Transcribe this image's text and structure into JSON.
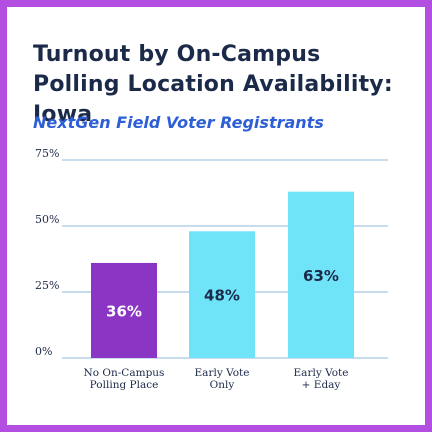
{
  "title": "Turnout by On-Campus Polling Location Availability: Iowa",
  "subtitle": "NextGen Field Voter Registrants",
  "colors": {
    "border": "#b24fe0",
    "title": "#1c2a4a",
    "subtitle": "#2e5fd6",
    "grid": "#8fb8d8"
  },
  "chart_data": {
    "type": "bar",
    "categories": [
      [
        "No On-Campus",
        "Polling Place"
      ],
      [
        "Early Vote",
        "Only"
      ],
      [
        "Early Vote",
        "+ Eday"
      ]
    ],
    "values": [
      36,
      48,
      63
    ],
    "data_labels": [
      "36%",
      "48%",
      "63%"
    ],
    "bar_colors": [
      "#8b35c4",
      "#6fe3f8",
      "#6fe3f8"
    ],
    "label_colors": [
      "#ffffff",
      "#1c2a4a",
      "#1c2a4a"
    ],
    "y_ticks": [
      {
        "value": 0,
        "label": "0%"
      },
      {
        "value": 25,
        "label": "25%"
      },
      {
        "value": 50,
        "label": "50%"
      },
      {
        "value": 75,
        "label": "75%"
      }
    ],
    "ylim": [
      0,
      75
    ],
    "grid": true,
    "legend": "none"
  }
}
